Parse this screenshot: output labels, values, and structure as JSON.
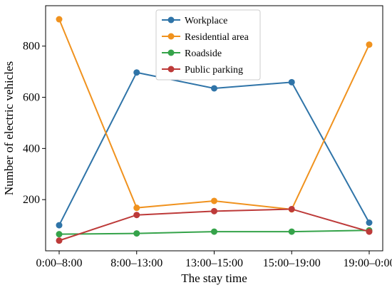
{
  "chart_data": {
    "type": "line",
    "categories": [
      "0:00–8:00",
      "8:00–13:00",
      "13:00–15:00",
      "15:00–19:00",
      "19:00–0:00"
    ],
    "series": [
      {
        "name": "Workplace",
        "color": "#2f74a8",
        "values": [
          100,
          697,
          635,
          659,
          110
        ]
      },
      {
        "name": "Residential area",
        "color": "#f0921e",
        "values": [
          905,
          168,
          195,
          162,
          806
        ]
      },
      {
        "name": "Roadside",
        "color": "#35a34a",
        "values": [
          65,
          68,
          75,
          75,
          80
        ]
      },
      {
        "name": "Public parking",
        "color": "#bd3a39",
        "values": [
          40,
          140,
          155,
          163,
          75
        ]
      }
    ],
    "yticks": [
      200,
      400,
      600,
      800
    ],
    "ylim": [
      0,
      958
    ],
    "xlabel": "The stay time",
    "ylabel": "Number of electric vehicles",
    "legend_position": "top-center",
    "grid": false
  }
}
